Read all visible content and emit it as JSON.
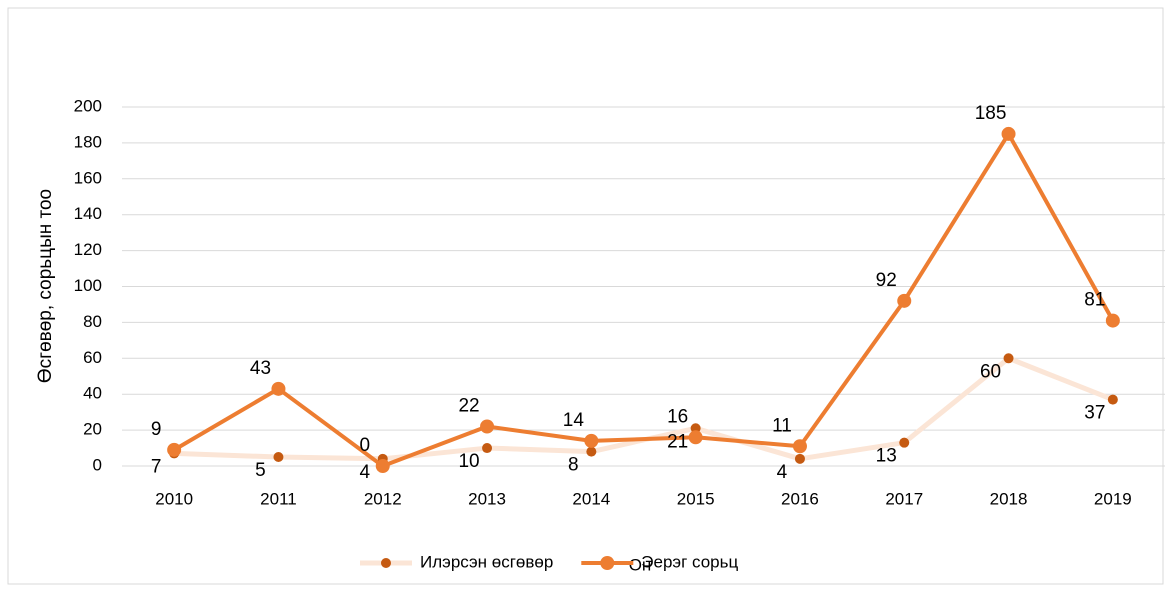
{
  "chart_data": {
    "type": "line",
    "categories": [
      "2010",
      "2011",
      "2012",
      "2013",
      "2014",
      "2015",
      "2016",
      "2017",
      "2018",
      "2019"
    ],
    "series": [
      {
        "name": "Илэрсэн өсгөвөр",
        "color": "#fbe5d6",
        "marker_color": "#c55a11",
        "values": [
          7,
          5,
          4,
          10,
          8,
          21,
          4,
          13,
          60,
          37
        ]
      },
      {
        "name": "Эерэг сорьц",
        "color": "#ed7d31",
        "marker_color": "#ed7d31",
        "values": [
          9,
          43,
          0,
          22,
          14,
          16,
          11,
          92,
          185,
          81
        ]
      }
    ],
    "xlabel": "Он",
    "ylabel": "Өсгөвөр, сорьцын тоо",
    "ylim": [
      0,
      200
    ],
    "yticks": [
      0,
      20,
      40,
      60,
      80,
      100,
      120,
      140,
      160,
      180,
      200
    ],
    "grid": true,
    "legend": "bottom"
  }
}
